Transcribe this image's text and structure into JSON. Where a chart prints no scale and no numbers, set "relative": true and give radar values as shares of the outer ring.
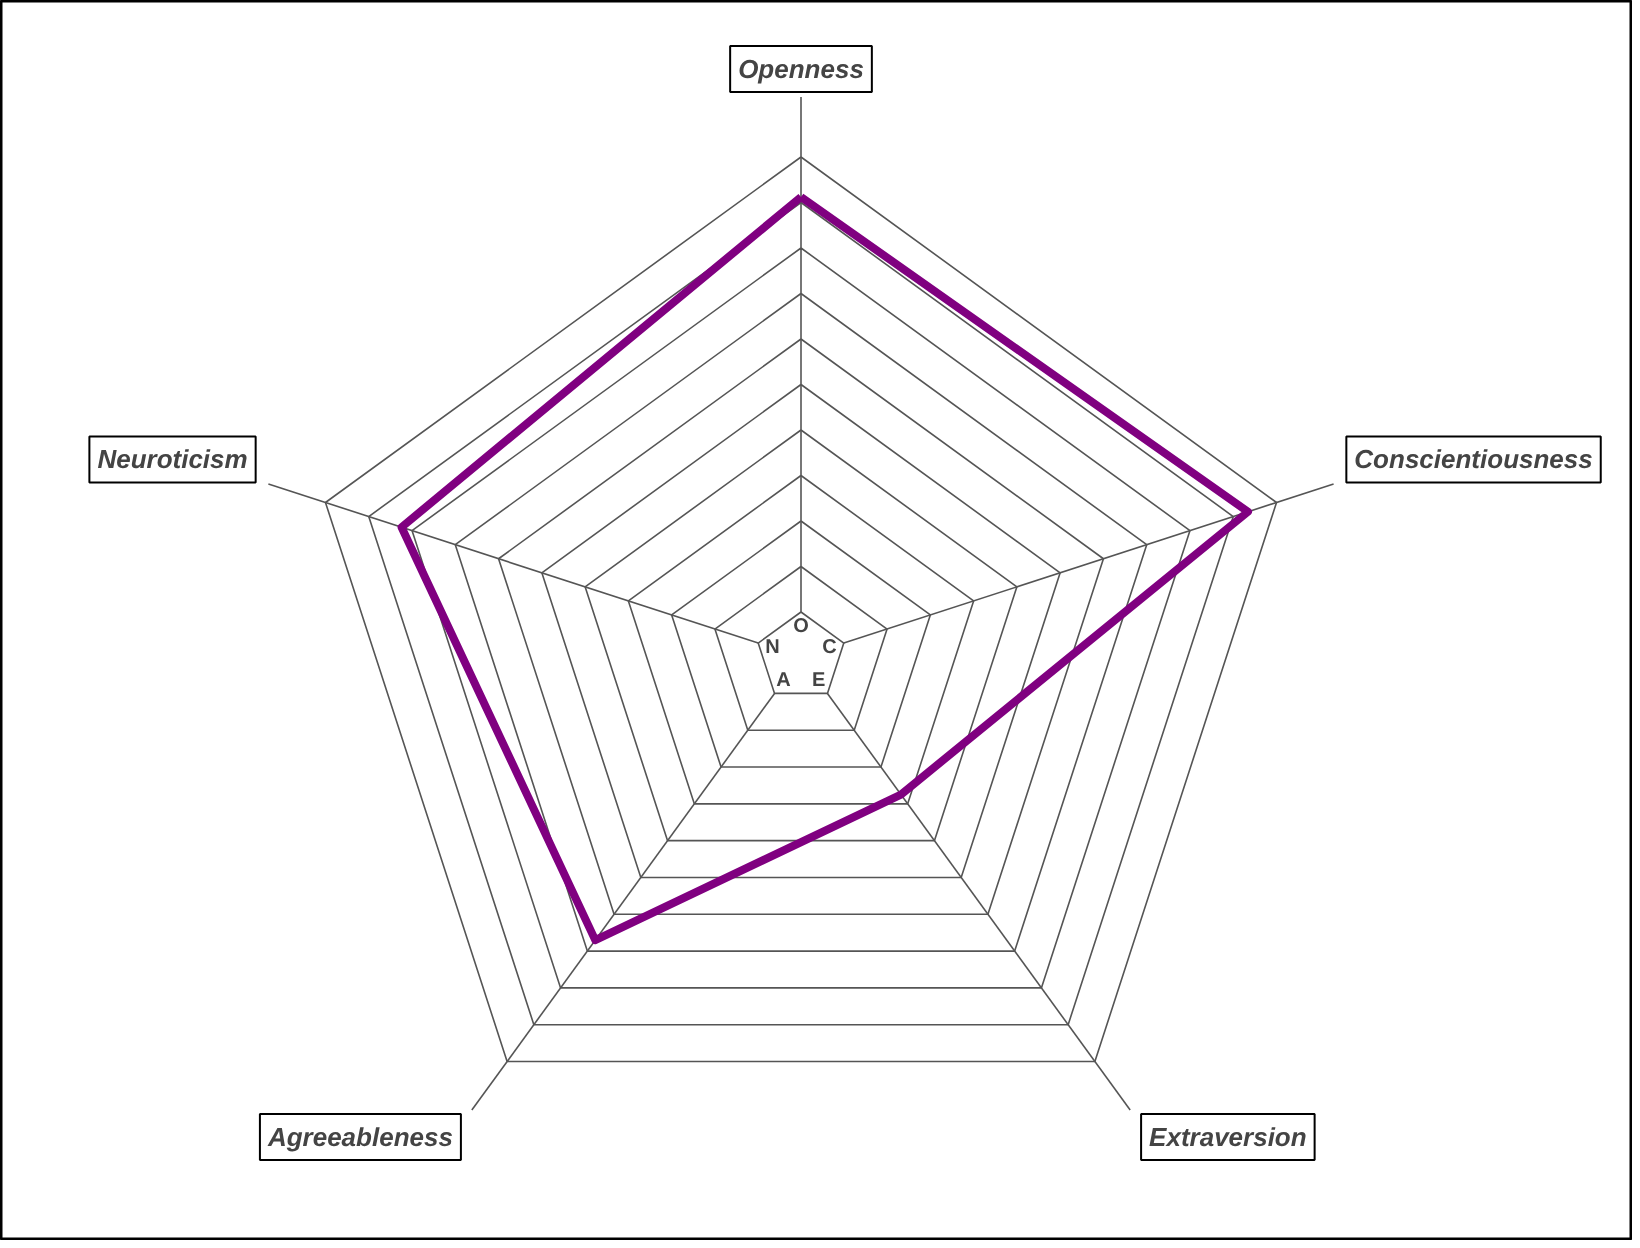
{
  "chart_data": {
    "type": "radar",
    "relative": true,
    "grid": true,
    "categories": [
      "Openness",
      "Conscientiousness",
      "Extraversion",
      "Agreeableness",
      "Neuroticism"
    ],
    "annotations": [
      "O",
      "C",
      "E",
      "A",
      "N"
    ],
    "series": [
      {
        "color": "#800080",
        "values": [
          0.92,
          0.94,
          0.34,
          0.7,
          0.84
        ]
      }
    ]
  }
}
